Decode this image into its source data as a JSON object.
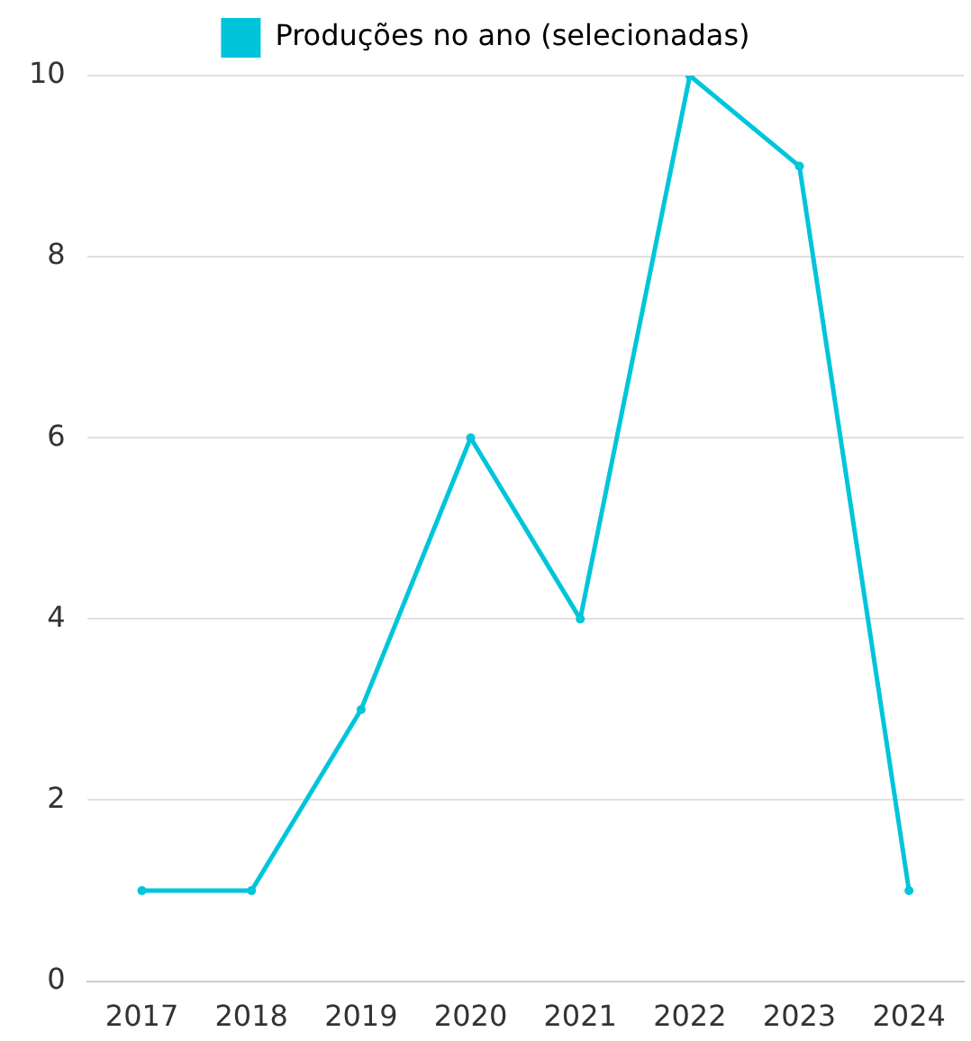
{
  "chart_data": {
    "type": "line",
    "categories": [
      "2017",
      "2018",
      "2019",
      "2020",
      "2021",
      "2022",
      "2023",
      "2024"
    ],
    "series": [
      {
        "name": "Produções no ano (selecionadas)",
        "color": "#00c5da",
        "values": [
          1,
          1,
          3,
          6,
          4,
          10,
          9,
          1
        ]
      }
    ],
    "ylim": [
      0,
      10
    ],
    "yticks": [
      0,
      2,
      4,
      6,
      8,
      10
    ],
    "grid": "y",
    "legend": "top",
    "marker": "circle",
    "line_style": "solid"
  }
}
